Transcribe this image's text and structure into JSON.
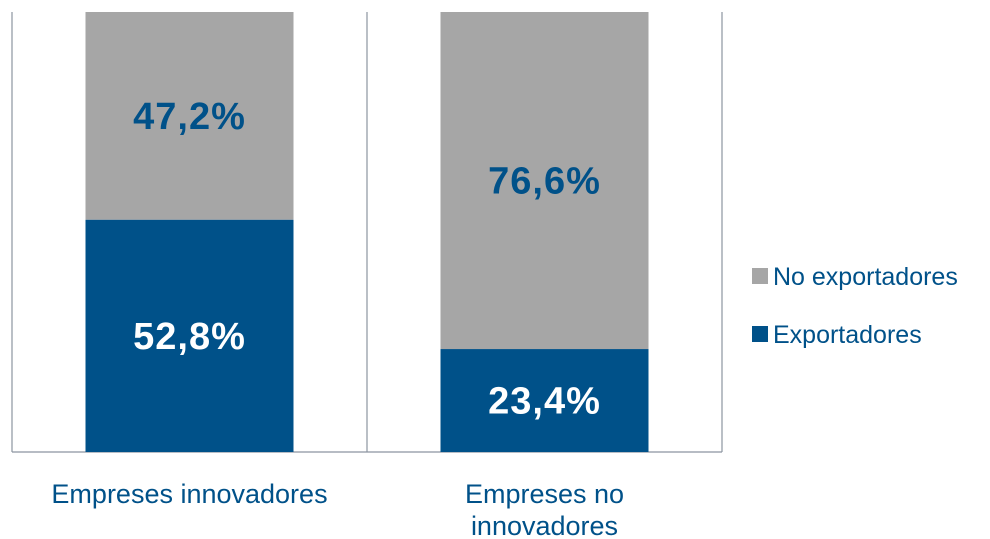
{
  "chart_data": {
    "type": "bar",
    "stacked": true,
    "percent_stacked": true,
    "categories": [
      [
        "Empreses innovadores"
      ],
      [
        "Empreses no",
        "innovadores"
      ]
    ],
    "series": [
      {
        "name": "Exportadores",
        "values": [
          52.8,
          23.4
        ],
        "labels": [
          "52,8%",
          "23,4%"
        ],
        "color": "#005189",
        "label_color": "#ffffff"
      },
      {
        "name": "No exportadores",
        "values": [
          47.2,
          76.6
        ],
        "labels": [
          "47,2%",
          "76,6%"
        ],
        "color": "#a6a6a6",
        "label_color": "#005189"
      }
    ],
    "ylim": [
      0,
      100
    ],
    "legend": {
      "position": "right",
      "order": [
        "No exportadores",
        "Exportadores"
      ]
    },
    "colors": {
      "axis": "#8c95a0",
      "category_text": "#005189"
    }
  }
}
